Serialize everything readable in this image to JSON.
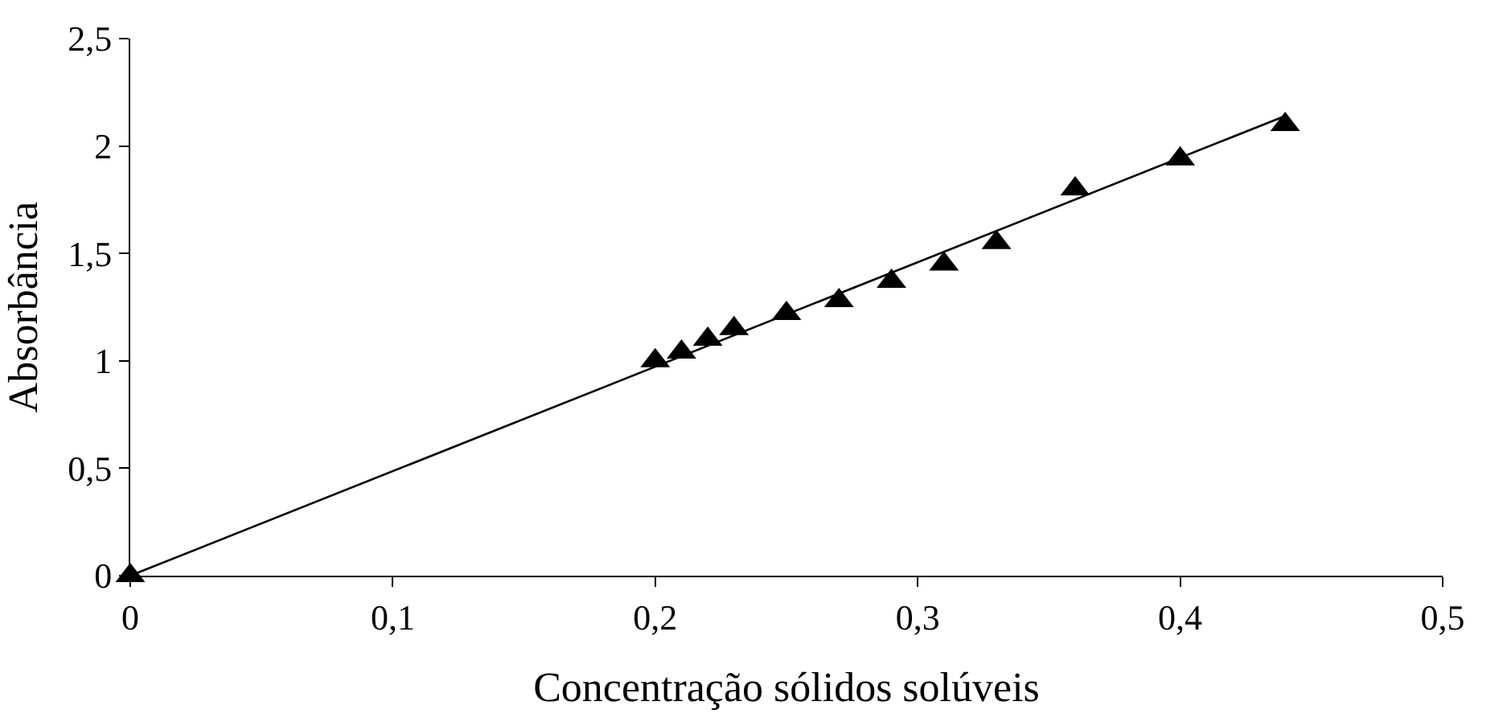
{
  "chart_data": {
    "type": "scatter",
    "xlabel": "Concentração sólidos solúveis",
    "ylabel": "Absorbância",
    "series": [
      {
        "color": "#000000",
        "marker": "triangle",
        "x": [
          0,
          0.2,
          0.21,
          0.22,
          0.23,
          0.25,
          0.27,
          0.29,
          0.31,
          0.33,
          0.36,
          0.4,
          0.44
        ],
        "values": [
          0,
          1.0,
          1.04,
          1.1,
          1.15,
          1.22,
          1.28,
          1.37,
          1.45,
          1.55,
          1.8,
          1.94,
          2.1
        ]
      },
      {
        "type": "line",
        "color": "#000000",
        "marker": "none",
        "x": [
          0,
          0.44
        ],
        "values": [
          0,
          2.14
        ]
      }
    ],
    "xlim": [
      0,
      0.5
    ],
    "ylim": [
      0,
      2.5
    ],
    "xticks": [
      {
        "value": 0,
        "label": "0"
      },
      {
        "value": 0.1,
        "label": "0,1"
      },
      {
        "value": 0.2,
        "label": "0,2"
      },
      {
        "value": 0.3,
        "label": "0,3"
      },
      {
        "value": 0.4,
        "label": "0,4"
      },
      {
        "value": 0.5,
        "label": "0,5"
      }
    ],
    "yticks": [
      {
        "value": 0,
        "label": "0"
      },
      {
        "value": 0.5,
        "label": "0,5"
      },
      {
        "value": 1,
        "label": "1"
      },
      {
        "value": 1.5,
        "label": "1,5"
      },
      {
        "value": 2,
        "label": "2"
      },
      {
        "value": 2.5,
        "label": "2,5"
      }
    ],
    "grid": false
  }
}
